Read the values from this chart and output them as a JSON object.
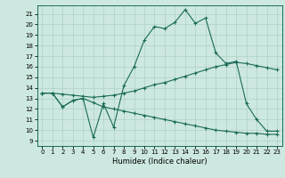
{
  "xlabel": "Humidex (Indice chaleur)",
  "background_color": "#cde8e0",
  "line_color": "#1a6b58",
  "grid_color": "#aed0c8",
  "xlim": [
    -0.5,
    23.5
  ],
  "ylim": [
    8.5,
    21.8
  ],
  "yticks": [
    9,
    10,
    11,
    12,
    13,
    14,
    15,
    16,
    17,
    18,
    19,
    20,
    21
  ],
  "xticks": [
    0,
    1,
    2,
    3,
    4,
    5,
    6,
    7,
    8,
    9,
    10,
    11,
    12,
    13,
    14,
    15,
    16,
    17,
    18,
    19,
    20,
    21,
    22,
    23
  ],
  "line1_x": [
    0,
    1,
    2,
    3,
    4,
    5,
    6,
    7,
    8,
    9,
    10,
    11,
    12,
    13,
    14,
    15,
    16,
    17,
    18,
    19,
    20,
    21,
    22,
    23
  ],
  "line1_y": [
    13.5,
    13.5,
    12.2,
    12.8,
    13.0,
    9.3,
    12.5,
    10.3,
    14.2,
    16.0,
    18.5,
    19.8,
    19.6,
    20.2,
    21.4,
    20.1,
    20.6,
    17.3,
    16.3,
    16.5,
    12.5,
    11.0,
    9.9,
    9.9
  ],
  "line2_x": [
    0,
    1,
    2,
    3,
    4,
    5,
    6,
    7,
    8,
    9,
    10,
    11,
    12,
    13,
    14,
    15,
    16,
    17,
    18,
    19,
    20,
    21,
    22,
    23
  ],
  "line2_y": [
    13.5,
    13.5,
    12.2,
    12.8,
    13.0,
    12.6,
    12.2,
    12.0,
    11.8,
    11.6,
    11.4,
    11.2,
    11.0,
    10.8,
    10.6,
    10.4,
    10.2,
    10.0,
    9.9,
    9.8,
    9.7,
    9.7,
    9.6,
    9.6
  ],
  "line3_x": [
    0,
    1,
    2,
    3,
    4,
    5,
    6,
    7,
    8,
    9,
    10,
    11,
    12,
    13,
    14,
    15,
    16,
    17,
    18,
    19,
    20,
    21,
    22,
    23
  ],
  "line3_y": [
    13.5,
    13.5,
    13.4,
    13.3,
    13.2,
    13.1,
    13.2,
    13.3,
    13.5,
    13.7,
    14.0,
    14.3,
    14.5,
    14.8,
    15.1,
    15.4,
    15.7,
    16.0,
    16.2,
    16.4,
    16.3,
    16.1,
    15.9,
    15.7
  ]
}
